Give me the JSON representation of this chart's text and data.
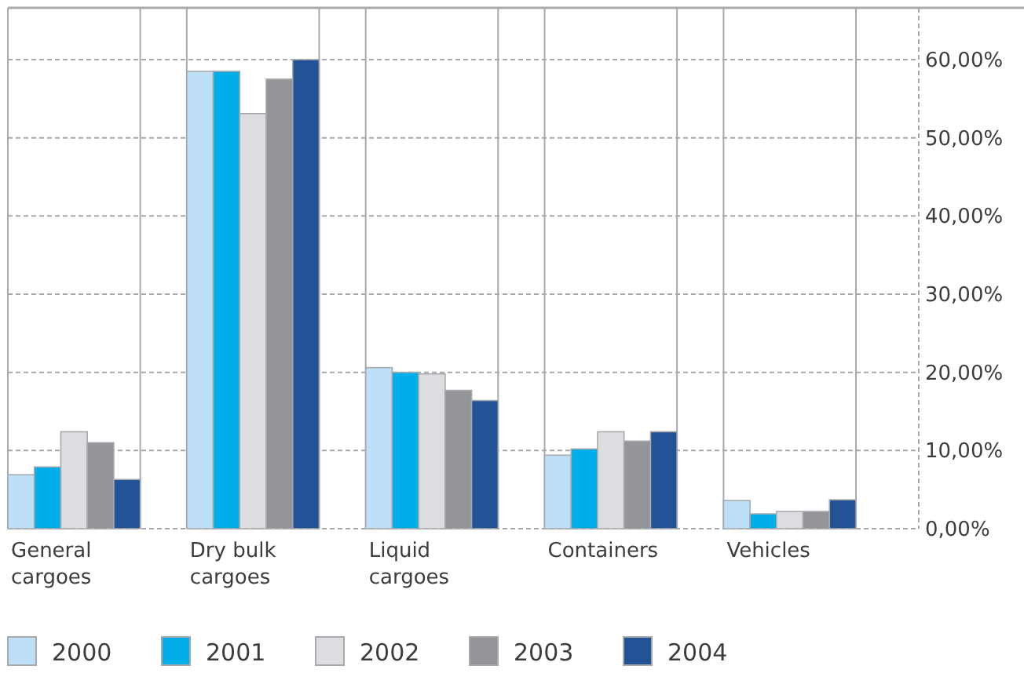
{
  "chart_data": {
    "type": "bar",
    "categories": [
      "General\ncargoes",
      "Dry bulk\ncargoes",
      "Liquid\ncargoes",
      "Containers",
      "Vehicles"
    ],
    "series": [
      {
        "name": "2000",
        "color": "#bde0f6",
        "values": [
          6.9,
          58.5,
          20.6,
          9.4,
          3.6
        ]
      },
      {
        "name": "2001",
        "color": "#00aeea",
        "values": [
          7.9,
          58.5,
          20.0,
          10.2,
          1.9
        ]
      },
      {
        "name": "2002",
        "color": "#dcdde0",
        "values": [
          12.4,
          53.1,
          19.8,
          12.4,
          2.2
        ]
      },
      {
        "name": "2003",
        "color": "#939598",
        "values": [
          11.0,
          57.5,
          17.7,
          11.2,
          2.2
        ]
      },
      {
        "name": "2004",
        "color": "#235396",
        "values": [
          6.3,
          60.0,
          16.4,
          12.4,
          3.7
        ]
      }
    ],
    "ylim": [
      0,
      60
    ],
    "yticks": [
      {
        "value": 0,
        "label": "0,00%"
      },
      {
        "value": 10,
        "label": "10,00%"
      },
      {
        "value": 20,
        "label": "20,00%"
      },
      {
        "value": 30,
        "label": "30,00%"
      },
      {
        "value": 40,
        "label": "40,00%"
      },
      {
        "value": 50,
        "label": "50,00%"
      },
      {
        "value": 60,
        "label": "60,00%"
      }
    ],
    "grid": "y",
    "legend": "bottom"
  }
}
